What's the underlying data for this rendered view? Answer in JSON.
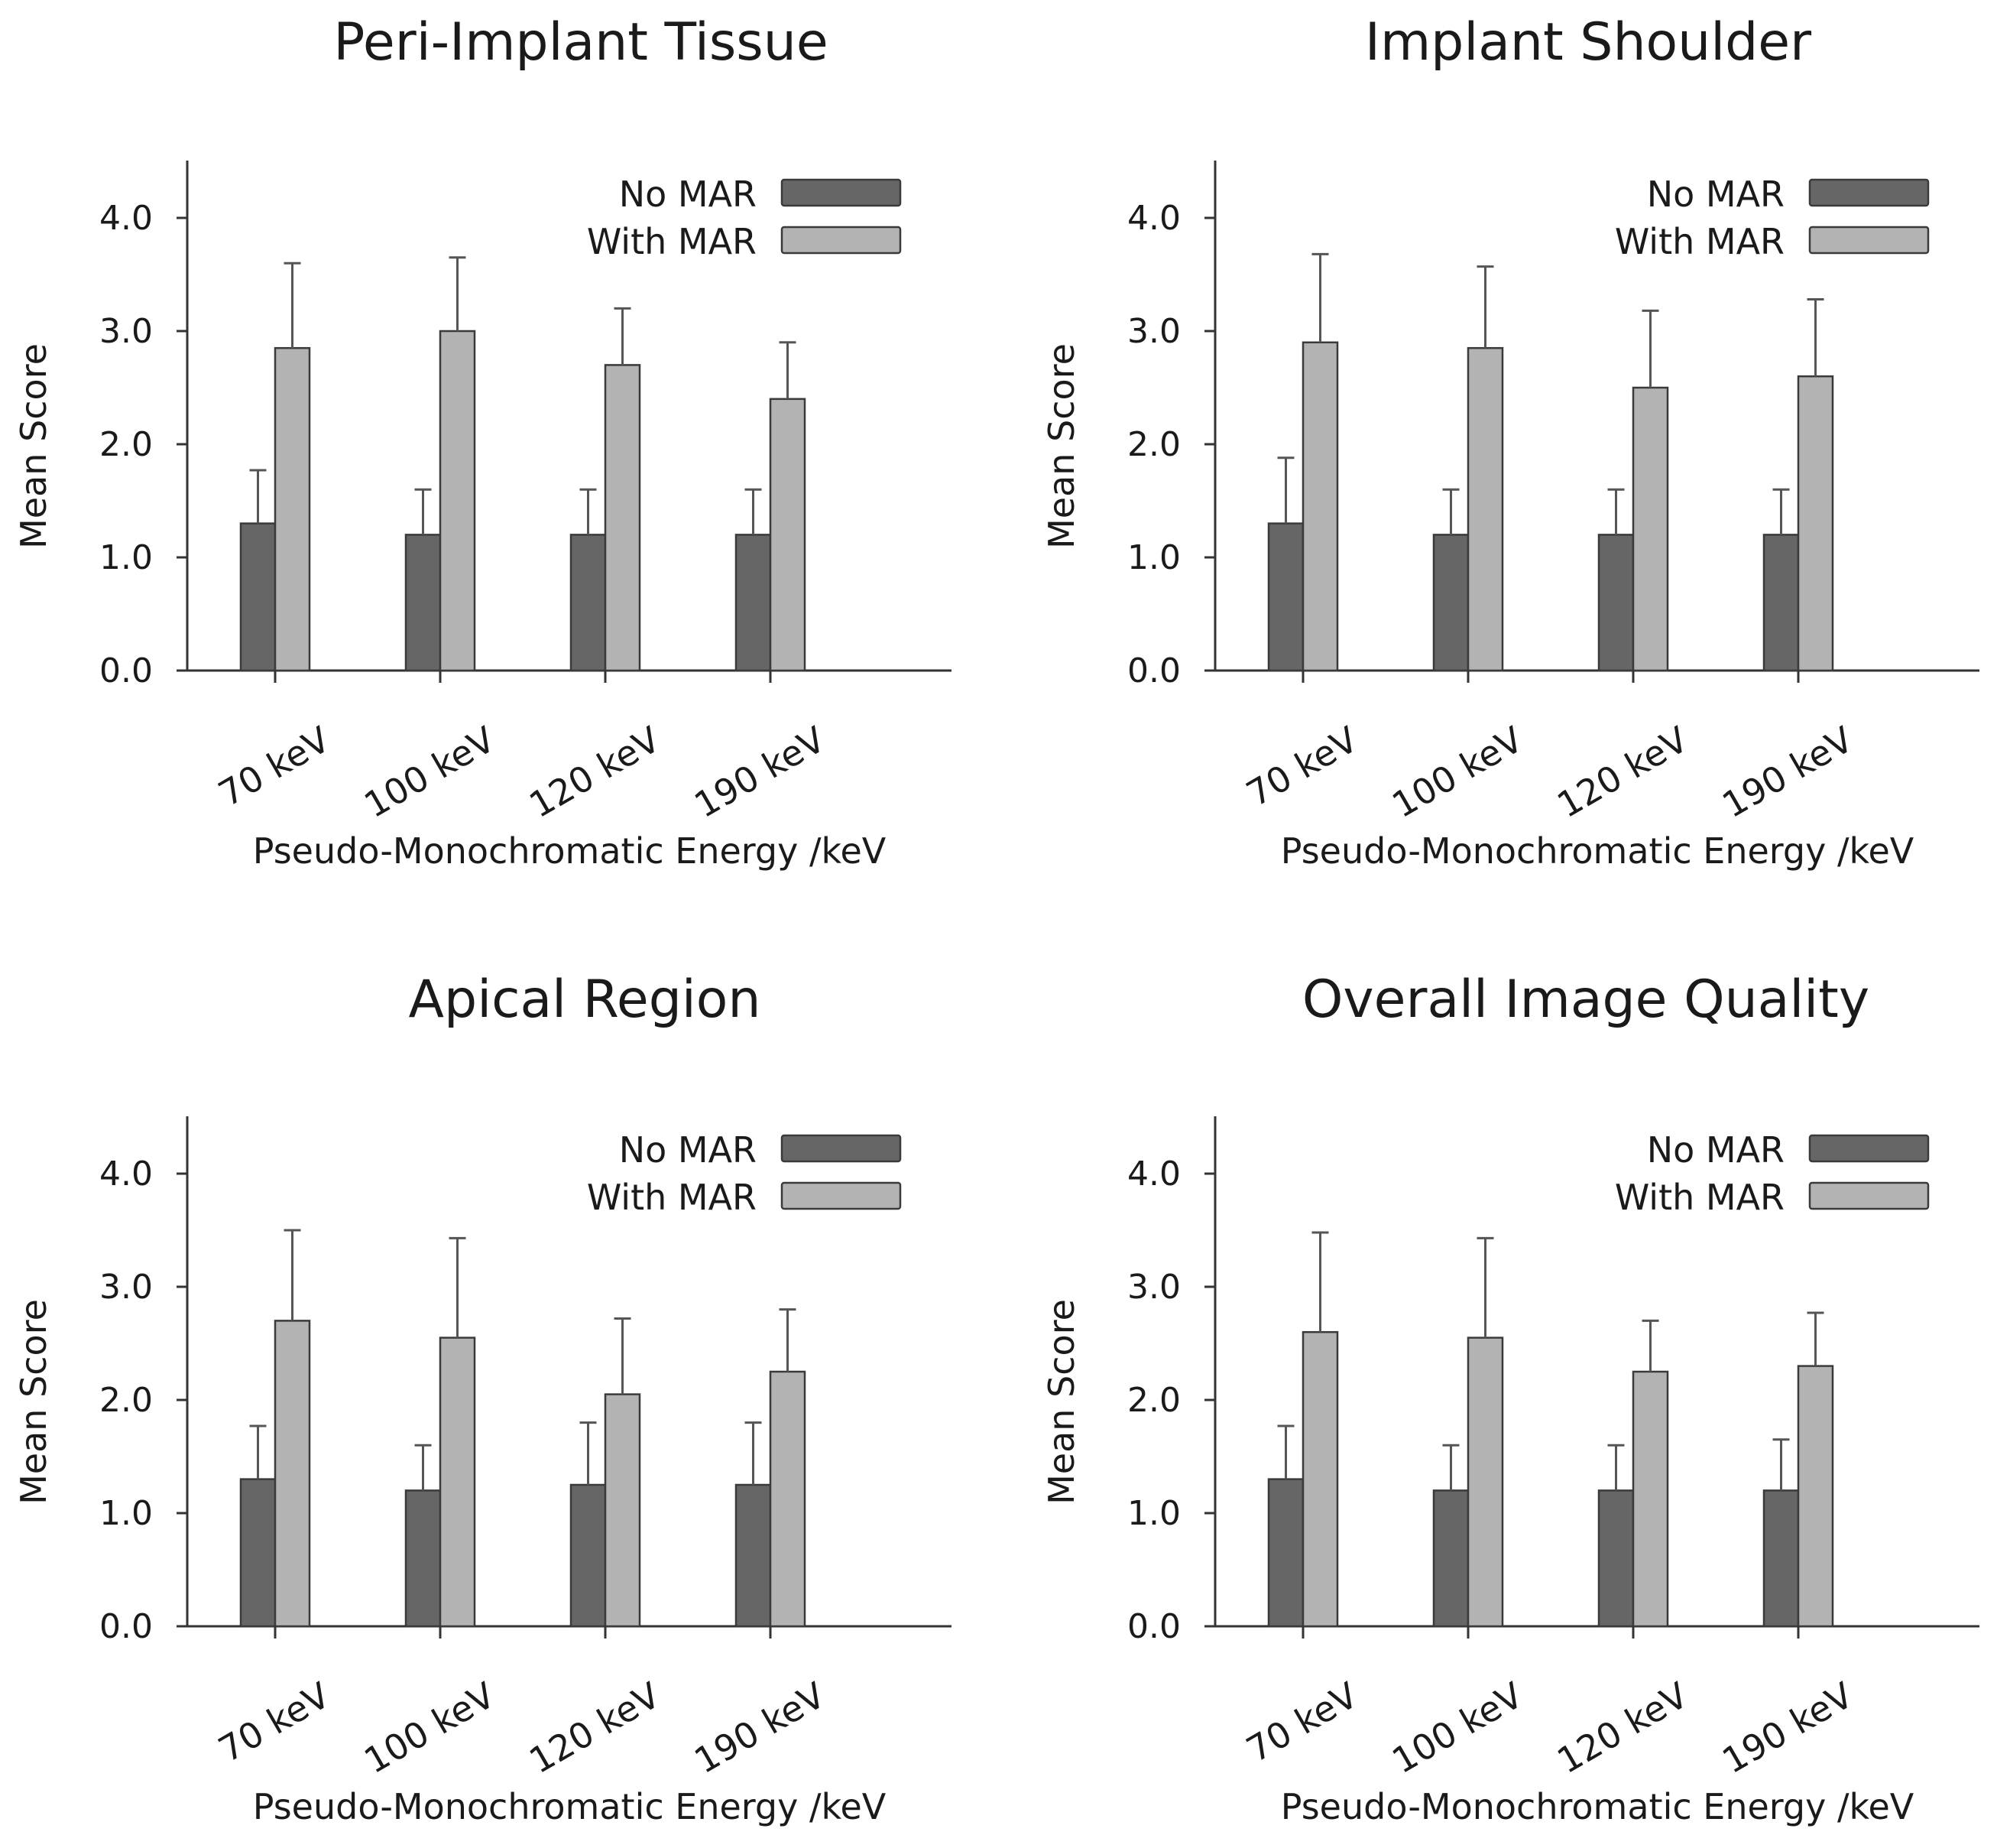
{
  "colors": {
    "no_mar": "#666666",
    "with_mar": "#b3b3b3"
  },
  "chart_data": [
    {
      "type": "bar",
      "title": "Peri-Implant Tissue",
      "xlabel": "Pseudo-Monochromatic Energy /keV",
      "ylabel": "Mean Score",
      "ylim": [
        0,
        4.5
      ],
      "yticks": [
        "0.0",
        "1.0",
        "2.0",
        "3.0",
        "4.0"
      ],
      "legend_position": "top-right",
      "categories": [
        "70 keV",
        "100 keV",
        "120 keV",
        "190 keV"
      ],
      "series": [
        {
          "name": "No MAR",
          "values": [
            1.3,
            1.2,
            1.2,
            1.2
          ],
          "error": [
            0.47,
            0.4,
            0.4,
            0.4
          ]
        },
        {
          "name": "With MAR",
          "values": [
            2.85,
            3.0,
            2.7,
            2.4
          ],
          "error": [
            0.75,
            0.65,
            0.5,
            0.5
          ]
        }
      ]
    },
    {
      "type": "bar",
      "title": "Implant Shoulder",
      "xlabel": "Pseudo-Monochromatic Energy /keV",
      "ylabel": "Mean Score",
      "ylim": [
        0,
        4.5
      ],
      "yticks": [
        "0.0",
        "1.0",
        "2.0",
        "3.0",
        "4.0"
      ],
      "legend_position": "top-right",
      "categories": [
        "70 keV",
        "100 keV",
        "120 keV",
        "190 keV"
      ],
      "series": [
        {
          "name": "No MAR",
          "values": [
            1.3,
            1.2,
            1.2,
            1.2
          ],
          "error": [
            0.58,
            0.4,
            0.4,
            0.4
          ]
        },
        {
          "name": "With MAR",
          "values": [
            2.9,
            2.85,
            2.5,
            2.6
          ],
          "error": [
            0.78,
            0.72,
            0.68,
            0.68
          ]
        }
      ]
    },
    {
      "type": "bar",
      "title": "Apical Region",
      "xlabel": "Pseudo-Monochromatic Energy /keV",
      "ylabel": "Mean Score",
      "ylim": [
        0,
        4.5
      ],
      "yticks": [
        "0.0",
        "1.0",
        "2.0",
        "3.0",
        "4.0"
      ],
      "legend_position": "top-right",
      "categories": [
        "70 keV",
        "100 keV",
        "120 keV",
        "190 keV"
      ],
      "series": [
        {
          "name": "No MAR",
          "values": [
            1.3,
            1.2,
            1.25,
            1.25
          ],
          "error": [
            0.47,
            0.4,
            0.55,
            0.55
          ]
        },
        {
          "name": "With MAR",
          "values": [
            2.7,
            2.55,
            2.05,
            2.25
          ],
          "error": [
            0.8,
            0.88,
            0.67,
            0.55
          ]
        }
      ]
    },
    {
      "type": "bar",
      "title": "Overall Image Quality",
      "xlabel": "Pseudo-Monochromatic Energy /keV",
      "ylabel": "Mean Score",
      "ylim": [
        0,
        4.5
      ],
      "yticks": [
        "0.0",
        "1.0",
        "2.0",
        "3.0",
        "4.0"
      ],
      "legend_position": "top-right",
      "categories": [
        "70 keV",
        "100 keV",
        "120 keV",
        "190 keV"
      ],
      "series": [
        {
          "name": "No MAR",
          "values": [
            1.3,
            1.2,
            1.2,
            1.2
          ],
          "error": [
            0.47,
            0.4,
            0.4,
            0.45
          ]
        },
        {
          "name": "With MAR",
          "values": [
            2.6,
            2.55,
            2.25,
            2.3
          ],
          "error": [
            0.88,
            0.88,
            0.45,
            0.47
          ]
        }
      ]
    }
  ]
}
